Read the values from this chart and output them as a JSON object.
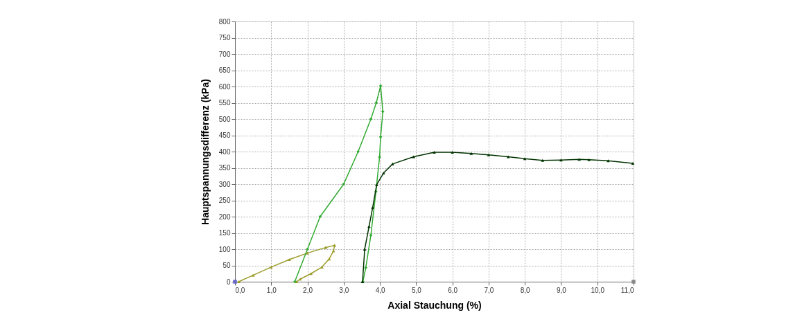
{
  "chart_data": {
    "type": "line",
    "xlabel": "Axial Stauchung (%)",
    "ylabel": "Hauptspannungsdifferenz (kPa)",
    "xlim": [
      0,
      11
    ],
    "ylim": [
      0,
      800
    ],
    "xticks": [
      {
        "value": 0,
        "label": "0,0"
      },
      {
        "value": 1,
        "label": "1,0"
      },
      {
        "value": 2,
        "label": "2,0"
      },
      {
        "value": 3,
        "label": "3,0"
      },
      {
        "value": 4,
        "label": "4,0"
      },
      {
        "value": 5,
        "label": "5,0"
      },
      {
        "value": 6,
        "label": "6,0"
      },
      {
        "value": 7,
        "label": "7,0"
      },
      {
        "value": 8,
        "label": "8,0"
      },
      {
        "value": 9,
        "label": "9,0"
      },
      {
        "value": 10,
        "label": "10,0"
      },
      {
        "value": 11,
        "label": "11,0"
      }
    ],
    "yticks": [
      0,
      50,
      100,
      150,
      200,
      250,
      300,
      350,
      400,
      450,
      500,
      550,
      600,
      650,
      700,
      750,
      800
    ],
    "grid": true,
    "line_style": "solid",
    "series": [
      {
        "type": "scatter",
        "color": "#6666cc",
        "marker": "square",
        "x": [
          0
        ],
        "values": [
          0
        ]
      },
      {
        "color": "#9c9c2c",
        "marker": "triangle",
        "x": [
          0.1,
          0.5,
          1.0,
          1.5,
          2.0,
          2.5,
          2.75,
          2.72,
          2.6,
          2.4,
          2.1,
          1.8,
          1.7
        ],
        "values": [
          0,
          20,
          45,
          68,
          88,
          105,
          112,
          95,
          70,
          45,
          25,
          8,
          0
        ]
      },
      {
        "color": "#33aa33",
        "marker": "diamond",
        "x": [
          1.65,
          2.0,
          2.35,
          3.0,
          3.4,
          3.75,
          3.9,
          4.02,
          4.08,
          4.02,
          3.99,
          3.89,
          3.75,
          3.61,
          3.53
        ],
        "values": [
          0,
          100,
          200,
          300,
          400,
          500,
          550,
          602,
          523,
          445,
          383,
          277,
          143,
          43,
          0
        ]
      },
      {
        "color": "#003300",
        "marker": "triangle",
        "x": [
          3.52,
          3.58,
          3.7,
          3.8,
          3.91,
          4.1,
          4.35,
          4.93,
          5.5,
          6.0,
          6.52,
          7.0,
          7.54,
          8.0,
          8.49,
          9.0,
          9.5,
          9.77,
          10.3,
          10.98
        ],
        "values": [
          0,
          100,
          170,
          228,
          298,
          334,
          362,
          384,
          398,
          398,
          394,
          390,
          384,
          378,
          373,
          374,
          376,
          375,
          372,
          364
        ]
      },
      {
        "type": "scatter",
        "color": "#888888",
        "marker": "square",
        "x": [
          11
        ],
        "values": [
          0
        ]
      }
    ]
  }
}
